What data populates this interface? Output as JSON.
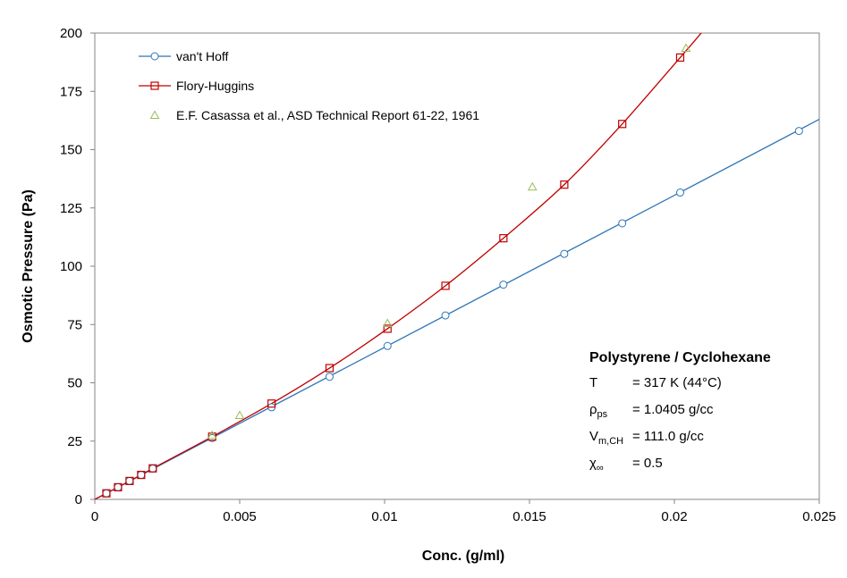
{
  "chart_data": {
    "type": "scatter",
    "xlabel": "Conc.  (g/ml)",
    "ylabel": "Osmotic Pressure (Pa)",
    "xlim": [
      0,
      0.025
    ],
    "ylim": [
      0,
      200
    ],
    "xticks": [
      0,
      0.005,
      0.01,
      0.015,
      0.02,
      0.025
    ],
    "xtick_labels": [
      "0",
      "0.005",
      "0.01",
      "0.015",
      "0.02",
      "0.025"
    ],
    "yticks": [
      0,
      25,
      50,
      75,
      100,
      125,
      150,
      175,
      200
    ],
    "ytick_labels": [
      "0",
      "25",
      "50",
      "75",
      "100",
      "125",
      "150",
      "175",
      "200"
    ],
    "grid": false,
    "legend_position": "top-left",
    "series": [
      {
        "name": "van't Hoff",
        "color": "#2E75B6",
        "marker": "circle",
        "line": true,
        "line_x": [
          0,
          0.025
        ],
        "line_y": [
          0,
          163
        ],
        "x": [
          0.0004,
          0.0008,
          0.0012,
          0.0016,
          0.002,
          0.00405,
          0.0061,
          0.0081,
          0.0101,
          0.0121,
          0.0141,
          0.0162,
          0.0182,
          0.0202,
          0.0243
        ],
        "y": [
          2.6,
          5.2,
          7.9,
          10.5,
          13.2,
          26.3,
          39.5,
          52.6,
          65.8,
          78.9,
          92.1,
          105.3,
          118.4,
          131.6,
          158.0
        ]
      },
      {
        "name": "Flory-Huggins",
        "color": "#C00000",
        "marker": "square",
        "line": true,
        "x": [
          0.0004,
          0.0008,
          0.0012,
          0.0016,
          0.002,
          0.00405,
          0.0061,
          0.0081,
          0.0101,
          0.0121,
          0.0141,
          0.0162,
          0.0182,
          0.0202
        ],
        "y": [
          2.6,
          5.2,
          7.9,
          10.5,
          13.3,
          26.9,
          41.1,
          56.3,
          73.2,
          91.6,
          112.0,
          135.0,
          161.0,
          189.5
        ]
      },
      {
        "name": "E.F. Casassa et al., ASD Technical Report 61-22, 1961",
        "color": "#9BBB59",
        "marker": "triangle",
        "line": false,
        "x": [
          0.00405,
          0.005,
          0.0101,
          0.0151,
          0.0204
        ],
        "y": [
          27.5,
          36.0,
          75.5,
          134.0,
          193.5
        ]
      }
    ],
    "annotation": {
      "title": "Polystyrene / Cyclohexane",
      "rows": [
        {
          "symbol": "T",
          "subscript": "",
          "value": "= 317 K (44°C)"
        },
        {
          "symbol": "ρ",
          "subscript": "ps",
          "value": "= 1.0405 g/cc"
        },
        {
          "symbol": "V",
          "subscript": "m,CH",
          "value": "= 111.0 g/cc"
        },
        {
          "symbol": "χ",
          "subscript": "∞",
          "value": "= 0.5"
        }
      ]
    }
  }
}
